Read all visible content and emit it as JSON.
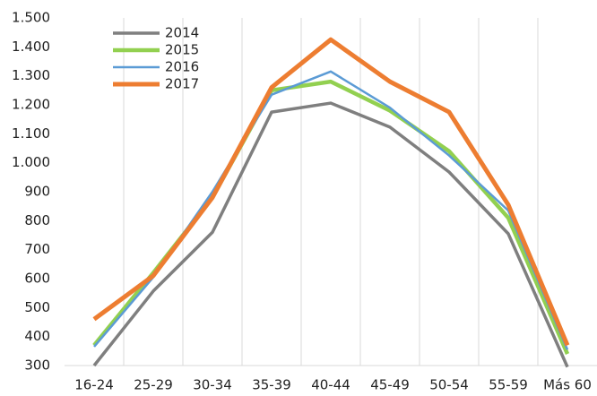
{
  "chart_data": {
    "type": "line",
    "categories": [
      "16-24",
      "25-29",
      "30-34",
      "35-39",
      "40-44",
      "45-49",
      "50-54",
      "55-59",
      "Más 60"
    ],
    "series": [
      {
        "name": "2014",
        "color": "#7f7f7f",
        "values": [
          300,
          557,
          760,
          1175,
          1206,
          1123,
          968,
          755,
          295
        ]
      },
      {
        "name": "2015",
        "color": "#92d050",
        "values": [
          370,
          620,
          880,
          1250,
          1280,
          1180,
          1040,
          810,
          340
        ]
      },
      {
        "name": "2016",
        "color": "#5b9bd5",
        "values": [
          365,
          605,
          900,
          1235,
          1315,
          1190,
          1025,
          835,
          355
        ]
      },
      {
        "name": "2017",
        "color": "#ed7d31",
        "values": [
          460,
          610,
          880,
          1260,
          1425,
          1280,
          1175,
          855,
          370
        ]
      }
    ],
    "ylim": [
      300,
      1500
    ],
    "yticks": [
      300,
      400,
      500,
      600,
      700,
      800,
      900,
      {
        "value": 1000,
        "label": "1.000"
      },
      {
        "value": 1100,
        "label": "1.100"
      },
      {
        "value": 1200,
        "label": "1.200"
      },
      {
        "value": 1300,
        "label": "1.300"
      },
      {
        "value": 1400,
        "label": "1.400"
      },
      {
        "value": 1500,
        "label": "1.500"
      }
    ],
    "grid": true,
    "legend": "upper left"
  }
}
